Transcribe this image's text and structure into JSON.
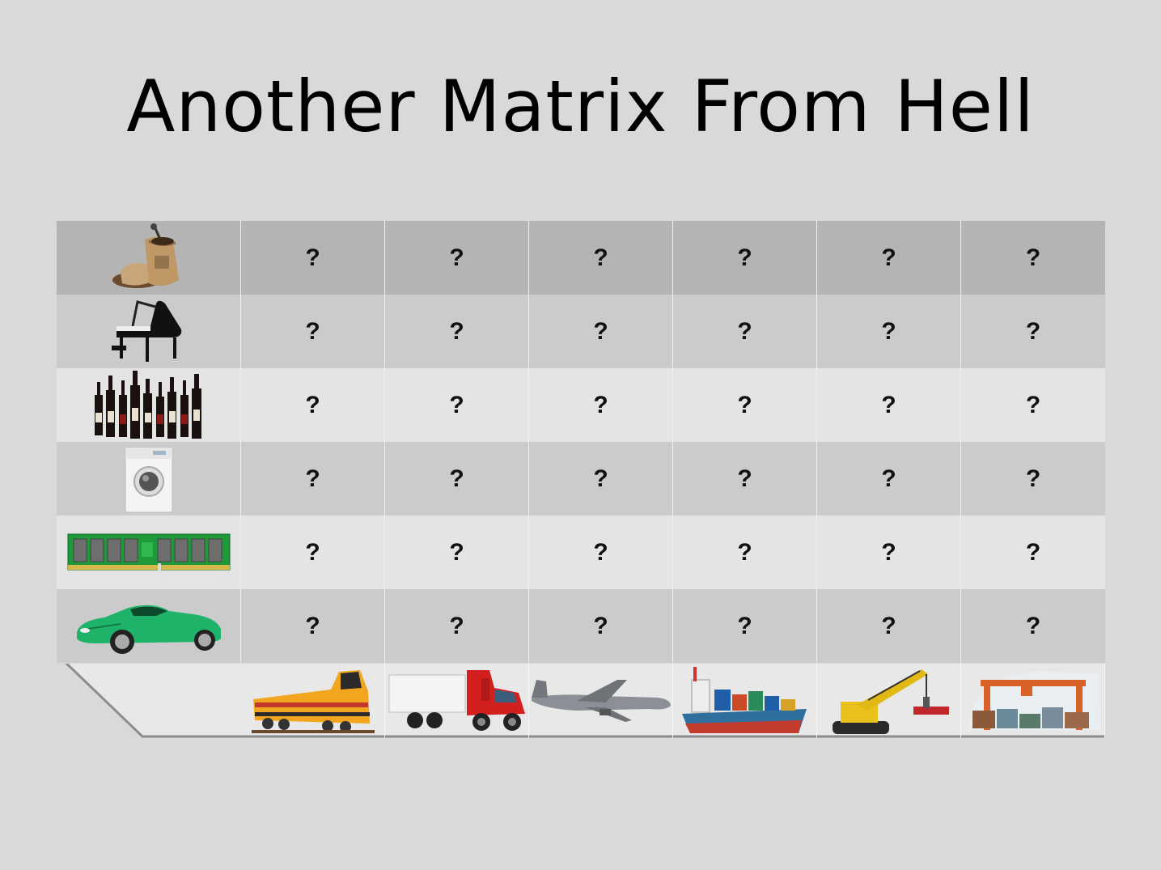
{
  "slide": {
    "title": "Another Matrix From Hell"
  },
  "matrix": {
    "rows": [
      {
        "icon": "coffee-sack-icon",
        "cells": [
          "?",
          "?",
          "?",
          "?",
          "?",
          "?"
        ]
      },
      {
        "icon": "grand-piano-icon",
        "cells": [
          "?",
          "?",
          "?",
          "?",
          "?",
          "?"
        ]
      },
      {
        "icon": "wine-bottles-icon",
        "cells": [
          "?",
          "?",
          "?",
          "?",
          "?",
          "?"
        ]
      },
      {
        "icon": "washing-machine-icon",
        "cells": [
          "?",
          "?",
          "?",
          "?",
          "?",
          "?"
        ]
      },
      {
        "icon": "ram-module-icon",
        "cells": [
          "?",
          "?",
          "?",
          "?",
          "?",
          "?"
        ]
      },
      {
        "icon": "sports-car-icon",
        "cells": [
          "?",
          "?",
          "?",
          "?",
          "?",
          "?"
        ]
      }
    ],
    "columns": [
      {
        "icon": "train-icon"
      },
      {
        "icon": "truck-icon"
      },
      {
        "icon": "cargo-plane-icon"
      },
      {
        "icon": "container-ship-icon"
      },
      {
        "icon": "crane-icon"
      },
      {
        "icon": "port-gantry-crane-icon"
      }
    ]
  }
}
